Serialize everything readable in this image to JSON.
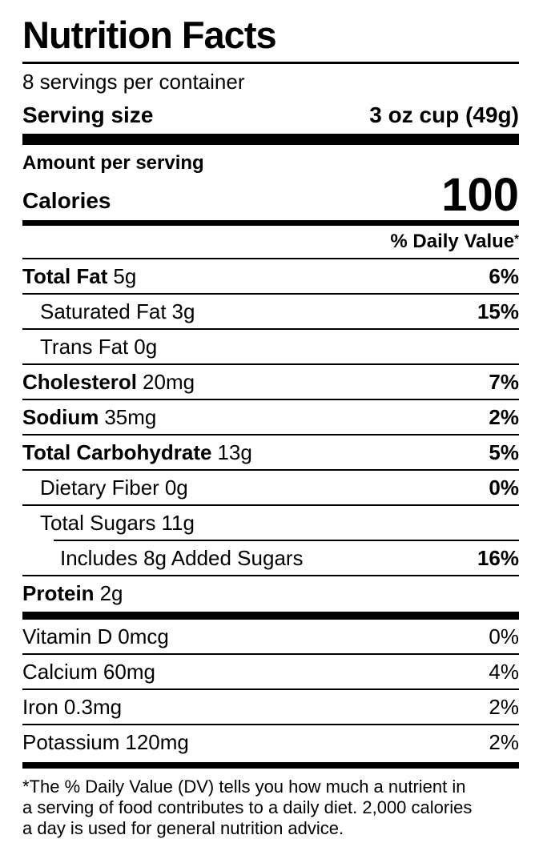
{
  "label": {
    "title": "Nutrition Facts",
    "servings_per_container": "8 servings per container",
    "serving_size": {
      "label": "Serving size",
      "value": "3 oz cup (49g)"
    },
    "amount_per_serving": "Amount per serving",
    "calories": {
      "label": "Calories",
      "value": "100"
    },
    "daily_value": {
      "header": "% Daily Value",
      "footnote_marker": "*"
    },
    "nutrients": [
      {
        "name": "Total Fat",
        "amount": "5g",
        "dv": "6%"
      },
      {
        "name": "Saturated Fat",
        "amount": "3g",
        "dv": "15%"
      },
      {
        "name": "Trans Fat",
        "amount": "0g",
        "dv": ""
      },
      {
        "name": "Cholesterol",
        "amount": "20mg",
        "dv": "7%"
      },
      {
        "name": "Sodium",
        "amount": "35mg",
        "dv": "2%"
      },
      {
        "name": "Total Carbohydrate",
        "amount": "13g",
        "dv": "5%"
      },
      {
        "name": "Dietary Fiber",
        "amount": "0g",
        "dv": "0%"
      },
      {
        "name": "Total Sugars",
        "amount": "11g",
        "dv": ""
      },
      {
        "name": "Includes 8g Added Sugars",
        "amount": "",
        "dv": "16%"
      },
      {
        "name": "Protein",
        "amount": "2g",
        "dv": ""
      }
    ],
    "micronutrients": [
      {
        "name": "Vitamin D",
        "amount": "0mcg",
        "dv": "0%"
      },
      {
        "name": "Calcium",
        "amount": "60mg",
        "dv": "4%"
      },
      {
        "name": "Iron",
        "amount": "0.3mg",
        "dv": "2%"
      },
      {
        "name": "Potassium",
        "amount": "120mg",
        "dv": "2%"
      }
    ],
    "footnote_lines": [
      "*The % Daily Value (DV) tells you how much a nutrient in",
      "a serving of food contributes to a daily diet. 2,000 calories",
      "a day is used for general nutrition advice."
    ],
    "colors": {
      "ink": "#000000",
      "background": "#ffffff"
    }
  }
}
